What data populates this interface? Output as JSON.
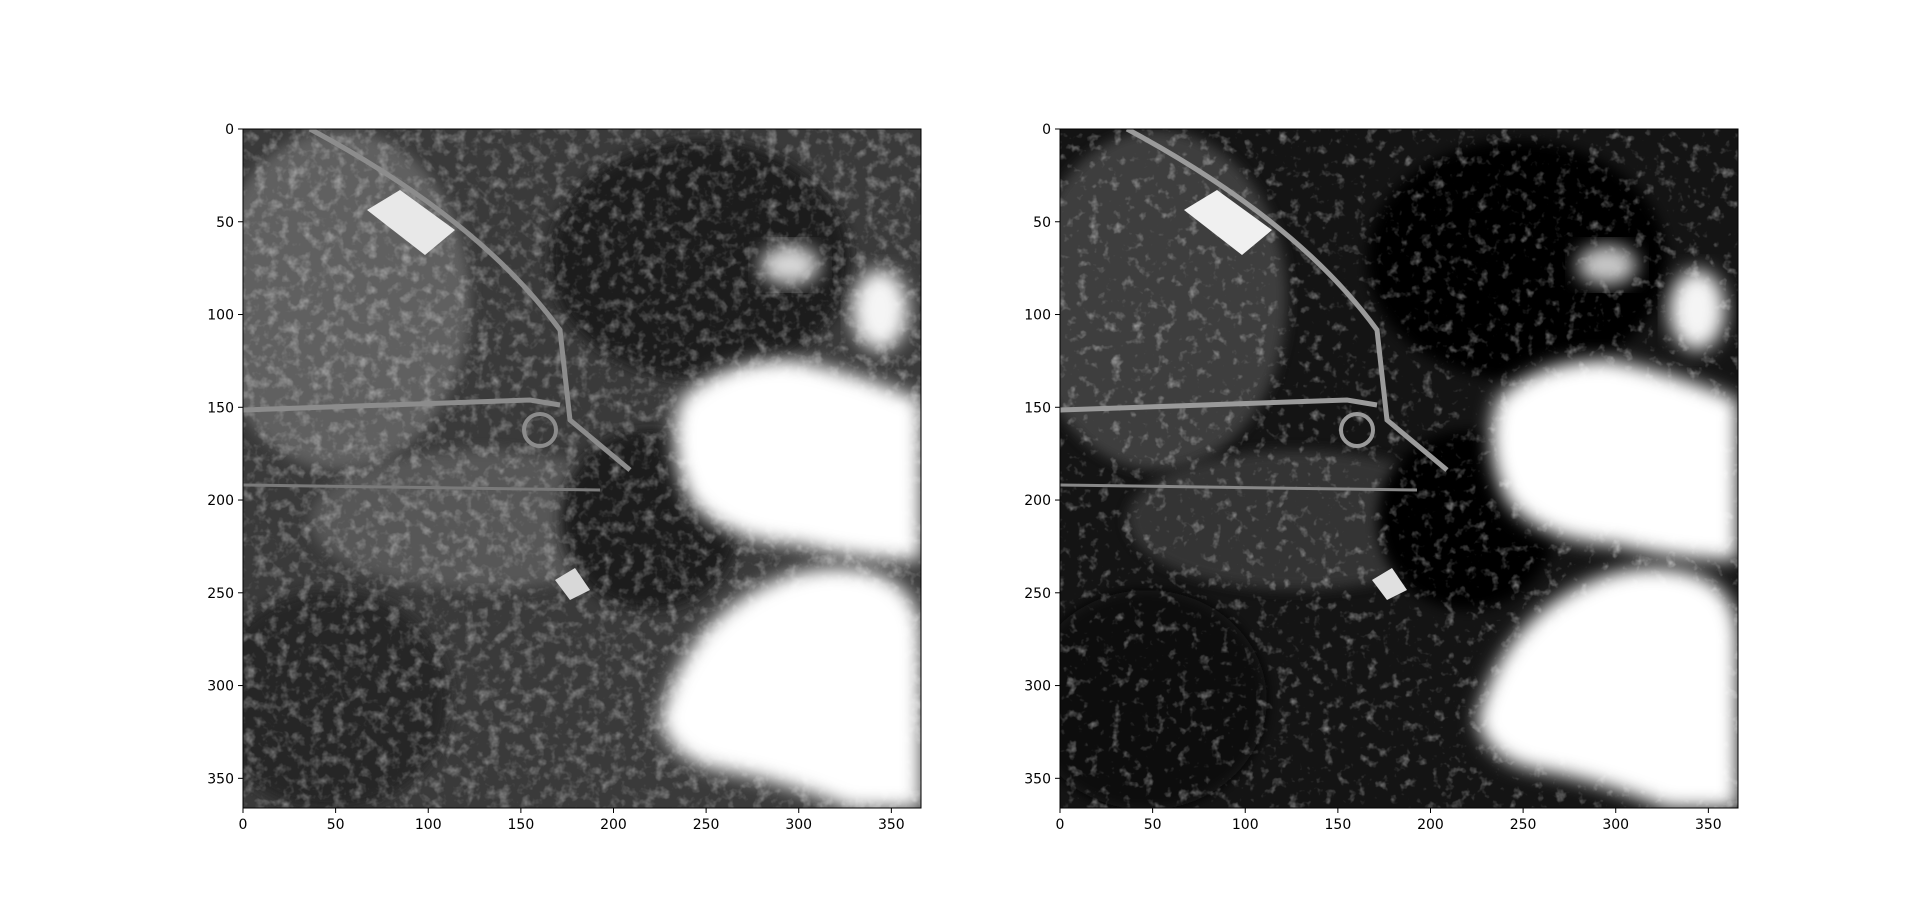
{
  "chart_data": [
    {
      "type": "heatmap",
      "colormap": "gray",
      "title": "",
      "xlabel": "",
      "ylabel": "",
      "xlim": [
        0,
        366
      ],
      "ylim": [
        366,
        0
      ],
      "x_ticks": [
        0,
        50,
        100,
        150,
        200,
        250,
        300,
        350
      ],
      "y_ticks": [
        0,
        50,
        100,
        150,
        200,
        250,
        300,
        350
      ],
      "x_tick_labels": [
        "0",
        "50",
        "100",
        "150",
        "200",
        "250",
        "300",
        "350"
      ],
      "y_tick_labels": [
        "0",
        "50",
        "100",
        "150",
        "200",
        "250",
        "300",
        "350"
      ],
      "image_content": "grayscale satellite image: roads, interchange, buildings, bright clouds at right",
      "contrast": "normal"
    },
    {
      "type": "heatmap",
      "colormap": "gray",
      "title": "",
      "xlabel": "",
      "ylabel": "",
      "xlim": [
        0,
        366
      ],
      "ylim": [
        366,
        0
      ],
      "x_ticks": [
        0,
        50,
        100,
        150,
        200,
        250,
        300,
        350
      ],
      "y_ticks": [
        0,
        50,
        100,
        150,
        200,
        250,
        300,
        350
      ],
      "x_tick_labels": [
        "0",
        "50",
        "100",
        "150",
        "200",
        "250",
        "300",
        "350"
      ],
      "y_tick_labels": [
        "0",
        "50",
        "100",
        "150",
        "200",
        "250",
        "300",
        "350"
      ],
      "image_content": "same scene with higher contrast (darker shadows)",
      "contrast": "high"
    }
  ],
  "colors": {
    "axis": "#000000",
    "background": "#ffffff",
    "cloud": "#ffffff",
    "ground": "#3a3a3a"
  }
}
